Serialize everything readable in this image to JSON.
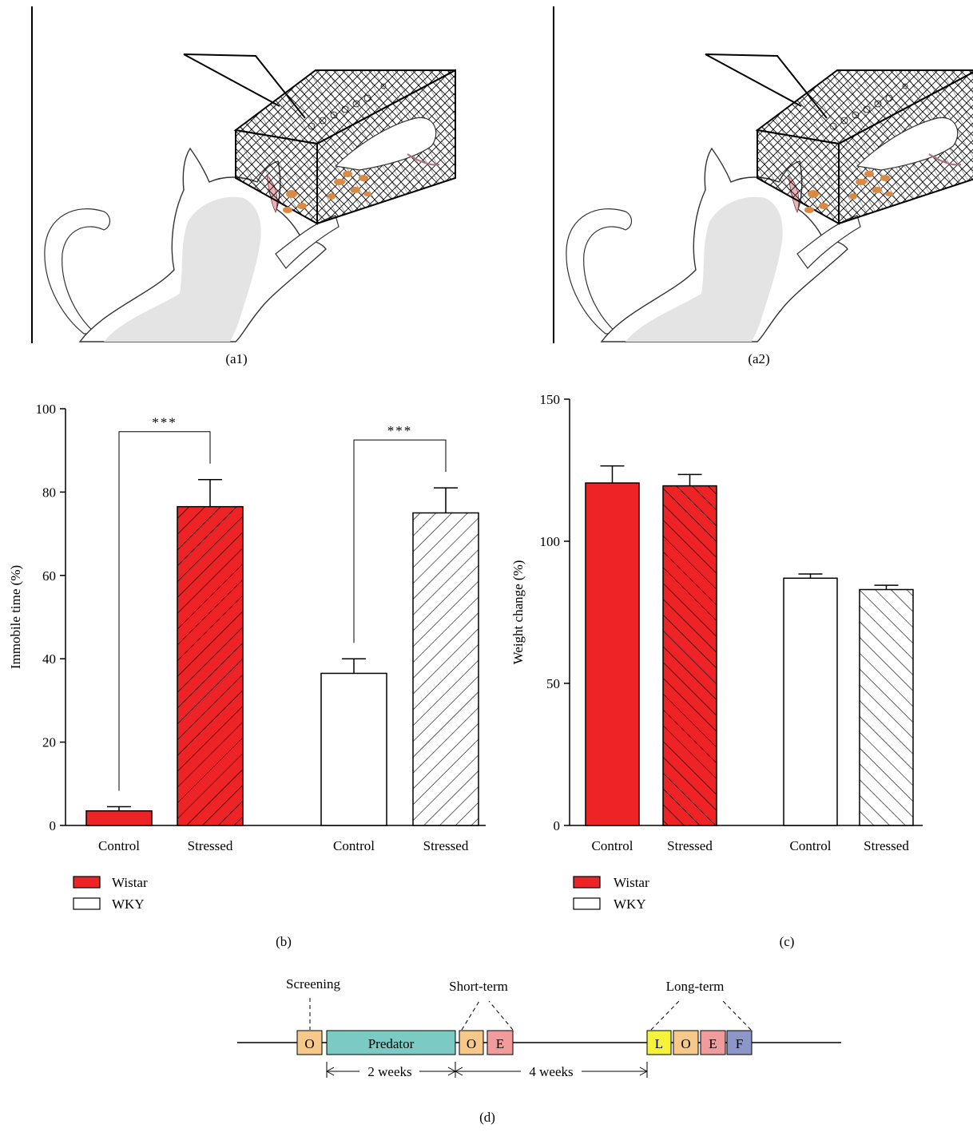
{
  "panels": {
    "a1": {
      "label": "(a1)"
    },
    "a2": {
      "label": "(a2)"
    },
    "b": {
      "label": "(b)"
    },
    "c": {
      "label": "(c)"
    },
    "d": {
      "label": "(d)"
    }
  },
  "legend": [
    {
      "name": "Wistar",
      "color": "#ee2326"
    },
    {
      "name": "WKY",
      "color": "#ffffff"
    }
  ],
  "colors": {
    "wistar": "#ee2326",
    "wky": "#ffffff",
    "axis": "#000000"
  },
  "chart_data": [
    {
      "id": "b",
      "type": "bar",
      "ylabel": "Immobile time (%)",
      "xlabel": "",
      "ylim": [
        0,
        100
      ],
      "yticks": [
        0,
        20,
        40,
        60,
        80,
        100
      ],
      "categories": [
        "Control",
        "Stressed",
        "Control",
        "Stressed"
      ],
      "groups": [
        "Wistar",
        "Wistar",
        "WKY",
        "WKY"
      ],
      "hatched": [
        false,
        true,
        false,
        true
      ],
      "values": [
        3.5,
        76.5,
        36.5,
        75
      ],
      "errors": [
        1.0,
        6.5,
        3.5,
        6.0
      ],
      "significance": [
        {
          "from": 0,
          "to": 1,
          "label": "***"
        },
        {
          "from": 2,
          "to": 3,
          "label": "***"
        }
      ],
      "legend_position": "bottom-left"
    },
    {
      "id": "c",
      "type": "bar",
      "ylabel": "Weight change (%)",
      "xlabel": "",
      "ylim": [
        0,
        150
      ],
      "yticks": [
        0,
        50,
        100,
        150
      ],
      "categories": [
        "Control",
        "Stressed",
        "Control",
        "Stressed"
      ],
      "groups": [
        "Wistar",
        "Wistar",
        "WKY",
        "WKY"
      ],
      "hatched": [
        false,
        true,
        false,
        true
      ],
      "values": [
        120.5,
        119.5,
        87,
        83
      ],
      "errors": [
        6,
        4,
        1.5,
        1.5
      ],
      "legend_position": "bottom-left"
    }
  ],
  "timeline": {
    "top_labels": {
      "screening": "Screening",
      "short_term": "Short-term",
      "long_term": "Long-term"
    },
    "boxes": [
      {
        "label": "O",
        "color": "#f6c98b"
      },
      {
        "label": "Predator",
        "color": "#7ccac4"
      },
      {
        "label": "O",
        "color": "#f6c98b"
      },
      {
        "label": "E",
        "color": "#f19c9c"
      },
      {
        "label": "L",
        "color": "#f5f23a"
      },
      {
        "label": "O",
        "color": "#f6c98b"
      },
      {
        "label": "E",
        "color": "#f19c9c"
      },
      {
        "label": "F",
        "color": "#8d96c8"
      }
    ],
    "durations": {
      "first": "2 weeks",
      "second": "4 weeks"
    }
  }
}
